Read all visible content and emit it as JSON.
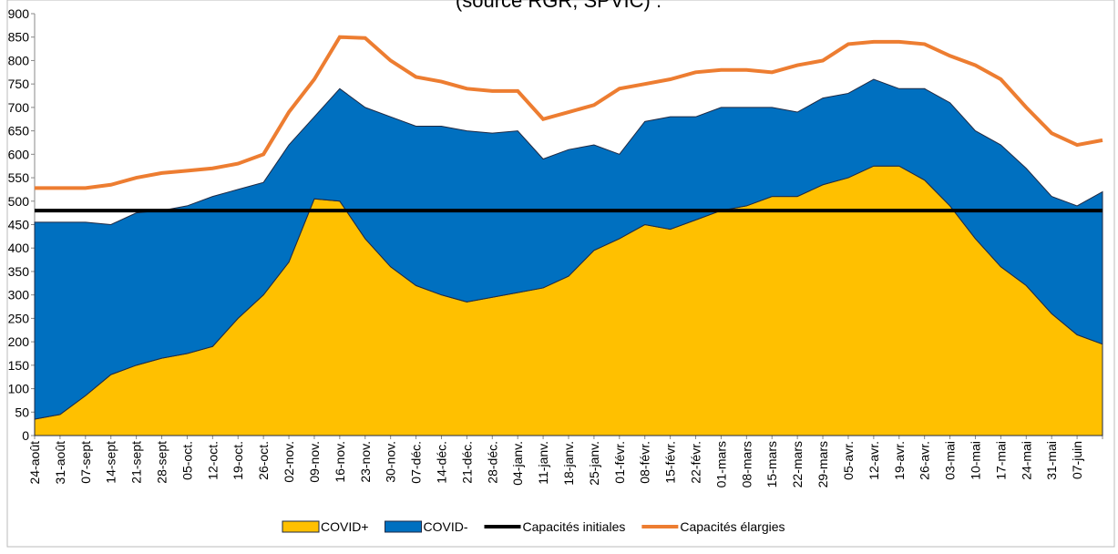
{
  "chart_data": {
    "type": "area",
    "title": "(source RGR, SPVIC) :",
    "categories": [
      "24-août",
      "31-août",
      "07-sept",
      "14-sept",
      "21-sept",
      "28-sept",
      "05-oct.",
      "12-oct.",
      "19-oct.",
      "26-oct.",
      "02-nov.",
      "09-nov.",
      "16-nov.",
      "23-nov.",
      "30-nov.",
      "07-déc.",
      "14-déc.",
      "21-déc.",
      "28-déc.",
      "04-janv.",
      "11-janv.",
      "18-janv.",
      "25-janv.",
      "01-févr.",
      "08-févr.",
      "15-févr.",
      "22-févr.",
      "01-mars",
      "08-mars",
      "15-mars",
      "22-mars",
      "29-mars",
      "05-avr.",
      "12-avr.",
      "19-avr.",
      "26-avr.",
      "03-mai",
      "10-mai",
      "17-mai",
      "24-mai",
      "31-mai",
      "07-juin",
      null
    ],
    "series": [
      {
        "name": "COVID+",
        "color": "#FFC000",
        "kind": "area",
        "values": [
          35,
          45,
          85,
          130,
          150,
          165,
          175,
          190,
          250,
          300,
          370,
          505,
          500,
          420,
          360,
          320,
          300,
          285,
          295,
          305,
          315,
          340,
          395,
          420,
          450,
          440,
          460,
          480,
          490,
          510,
          510,
          535,
          550,
          575,
          575,
          545,
          490,
          420,
          360,
          320,
          260,
          215,
          195
        ]
      },
      {
        "name": "COVID-",
        "color": "#0070C0",
        "kind": "area",
        "values": [
          420,
          410,
          370,
          320,
          325,
          315,
          315,
          320,
          275,
          240,
          250,
          175,
          240,
          280,
          320,
          340,
          360,
          365,
          350,
          345,
          275,
          270,
          225,
          180,
          220,
          240,
          220,
          220,
          210,
          190,
          180,
          185,
          180,
          185,
          165,
          195,
          220,
          230,
          260,
          250,
          250,
          275,
          325
        ]
      },
      {
        "name": "Capacités initiales",
        "color": "#000000",
        "kind": "line",
        "values": [
          480,
          480,
          480,
          480,
          480,
          480,
          480,
          480,
          480,
          480,
          480,
          480,
          480,
          480,
          480,
          480,
          480,
          480,
          480,
          480,
          480,
          480,
          480,
          480,
          480,
          480,
          480,
          480,
          480,
          480,
          480,
          480,
          480,
          480,
          480,
          480,
          480,
          480,
          480,
          480,
          480,
          480,
          480
        ]
      },
      {
        "name": "Capacités élargies",
        "color": "#ED7D31",
        "kind": "line",
        "values": [
          528,
          528,
          528,
          535,
          550,
          560,
          565,
          570,
          580,
          600,
          690,
          760,
          850,
          848,
          800,
          765,
          755,
          740,
          735,
          735,
          675,
          690,
          705,
          740,
          750,
          760,
          775,
          780,
          780,
          775,
          790,
          800,
          835,
          840,
          840,
          835,
          810,
          790,
          760,
          700,
          645,
          620,
          630
        ]
      }
    ],
    "stacked": true,
    "ylim": [
      0,
      900
    ],
    "yticks": [
      0,
      50,
      100,
      150,
      200,
      250,
      300,
      350,
      400,
      450,
      500,
      550,
      600,
      650,
      700,
      750,
      800,
      850,
      900
    ],
    "grid": false,
    "legend": "bottom"
  }
}
